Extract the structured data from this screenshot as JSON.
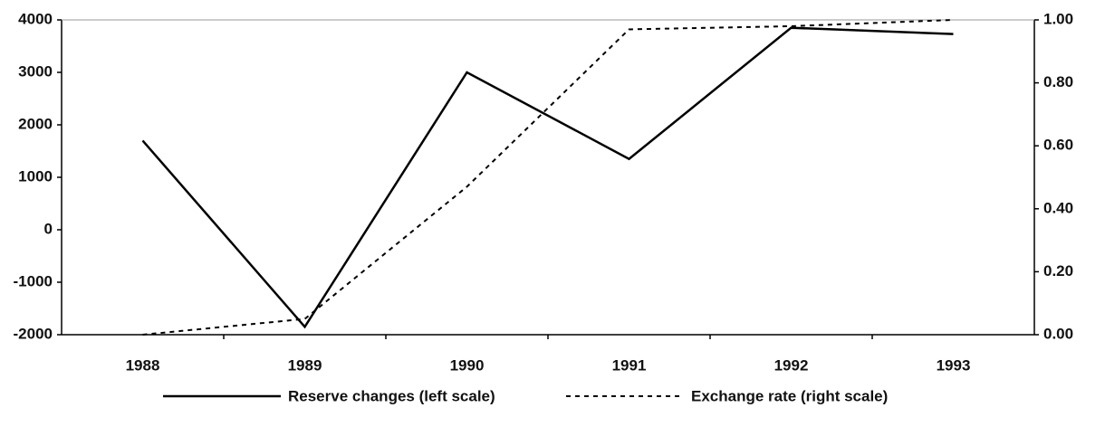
{
  "chart_data": {
    "type": "line",
    "categories": [
      "1988",
      "1989",
      "1990",
      "1991",
      "1992",
      "1993"
    ],
    "series": [
      {
        "name": "Reserve changes (left scale)",
        "color": "#000000",
        "dash": "solid",
        "values": [
          1700,
          -1850,
          3000,
          1350,
          3850,
          3730
        ]
      },
      {
        "name": "Exchange rate (right scale)",
        "color": "#000000",
        "dash": "dashed",
        "axis": "y2",
        "values": [
          0.0,
          0.05,
          0.47,
          0.97,
          0.98,
          1.0
        ]
      }
    ],
    "ylim": [
      -2000,
      4000
    ],
    "yticks": [
      -2000,
      -1000,
      0,
      1000,
      2000,
      3000,
      4000
    ],
    "y2lim": [
      0,
      1
    ],
    "y2ticks": [
      {
        "value": 0,
        "label": "0.00"
      },
      {
        "value": 0.2,
        "label": "0.20"
      },
      {
        "value": 0.4,
        "label": "0.40"
      },
      {
        "value": 0.6,
        "label": "0.60"
      },
      {
        "value": 0.8,
        "label": "0.80"
      },
      {
        "value": 1,
        "label": "1.00"
      }
    ],
    "grid": false
  }
}
